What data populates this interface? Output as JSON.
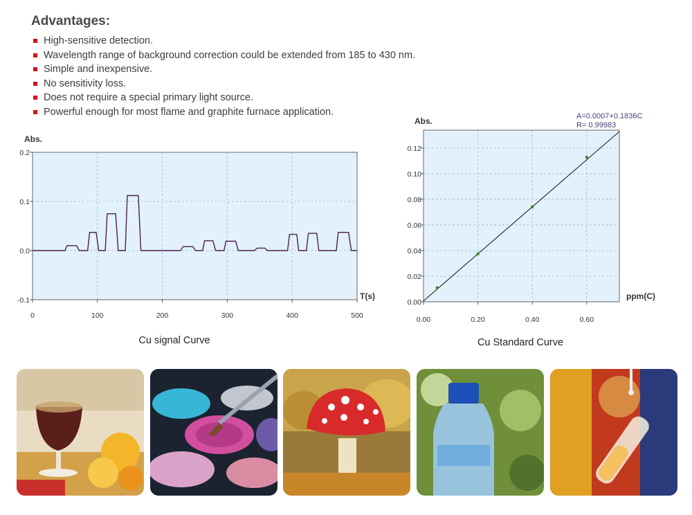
{
  "advantages": {
    "title": "Advantages:",
    "items": [
      "High-sensitive detection.",
      "Wavelength range of background correction could be extended from 185 to 430 nm.",
      "Simple and inexpensive.",
      "No sensitivity loss.",
      "Does not require a special primary light source.",
      "Powerful enough for most flame and graphite furnace application."
    ],
    "bullet_color": "#d4141c"
  },
  "chart_data": [
    {
      "type": "line",
      "caption": "Cu signal Curve",
      "ylabel": "Abs.",
      "xlabel": "T(s)",
      "xlim": [
        0,
        500
      ],
      "ylim": [
        -0.1,
        0.2
      ],
      "xticks": [
        0,
        100,
        200,
        300,
        400,
        500
      ],
      "yticks": [
        -0.1,
        0.0,
        0.1,
        0.2
      ],
      "ytick_labels": [
        "-0.1",
        "0.0",
        "0.1",
        "0.2"
      ],
      "grid": true,
      "plot_bg": "#e2f1fb",
      "line_color": "#4b1f52",
      "x": [
        0,
        15,
        50,
        53,
        68,
        72,
        85,
        88,
        98,
        102,
        112,
        115,
        128,
        132,
        143,
        146,
        163,
        167,
        228,
        232,
        247,
        251,
        262,
        265,
        278,
        282,
        295,
        298,
        313,
        317,
        342,
        346,
        358,
        362,
        393,
        396,
        407,
        410,
        422,
        425,
        438,
        441,
        468,
        471,
        487,
        491,
        500
      ],
      "y": [
        0.0,
        0.0,
        0.0,
        0.01,
        0.01,
        0.0,
        0.0,
        0.037,
        0.037,
        0.0,
        0.0,
        0.075,
        0.075,
        0.0,
        0.0,
        0.112,
        0.112,
        0.0,
        0.0,
        0.008,
        0.008,
        0.0,
        0.0,
        0.02,
        0.02,
        0.0,
        0.0,
        0.019,
        0.019,
        0.0,
        0.0,
        0.005,
        0.005,
        0.0,
        0.0,
        0.033,
        0.033,
        0.0,
        0.0,
        0.035,
        0.035,
        0.0,
        0.0,
        0.037,
        0.037,
        0.0,
        0.0
      ]
    },
    {
      "type": "scatter",
      "caption": "Cu Standard Curve",
      "ylabel": "Abs.",
      "xlabel": "ppm(C)",
      "xlim": [
        0,
        0.72
      ],
      "ylim": [
        0,
        0.134
      ],
      "xticks": [
        0,
        0.2,
        0.4,
        0.6
      ],
      "xtick_labels": [
        "0.00",
        "0.20",
        "0.40",
        "0.60"
      ],
      "yticks": [
        0,
        0.02,
        0.04,
        0.06,
        0.08,
        0.1,
        0.12
      ],
      "ytick_labels": [
        "0.00",
        "0.02",
        "0.04",
        "0.06",
        "0.08",
        "0.10",
        "0.12"
      ],
      "grid": true,
      "plot_bg": "#e2f1fb",
      "points": [
        {
          "x": 0.05,
          "y": 0.0109
        },
        {
          "x": 0.2,
          "y": 0.0374
        },
        {
          "x": 0.4,
          "y": 0.0741
        },
        {
          "x": 0.6,
          "y": 0.1128
        }
      ],
      "point_color": "#3a8a2a",
      "fit": {
        "intercept": 0.0007,
        "slope": 0.1836
      },
      "fit_color": "#111111",
      "annotations": [
        "A=0.0007+0.1836C",
        "R= 0.99983"
      ],
      "annotation_color": "#4a3a7a"
    }
  ],
  "images": [
    {
      "name": "wine-glass-image"
    },
    {
      "name": "cosmetics-image"
    },
    {
      "name": "mushroom-image"
    },
    {
      "name": "water-bottle-image"
    },
    {
      "name": "test-tube-image"
    }
  ]
}
